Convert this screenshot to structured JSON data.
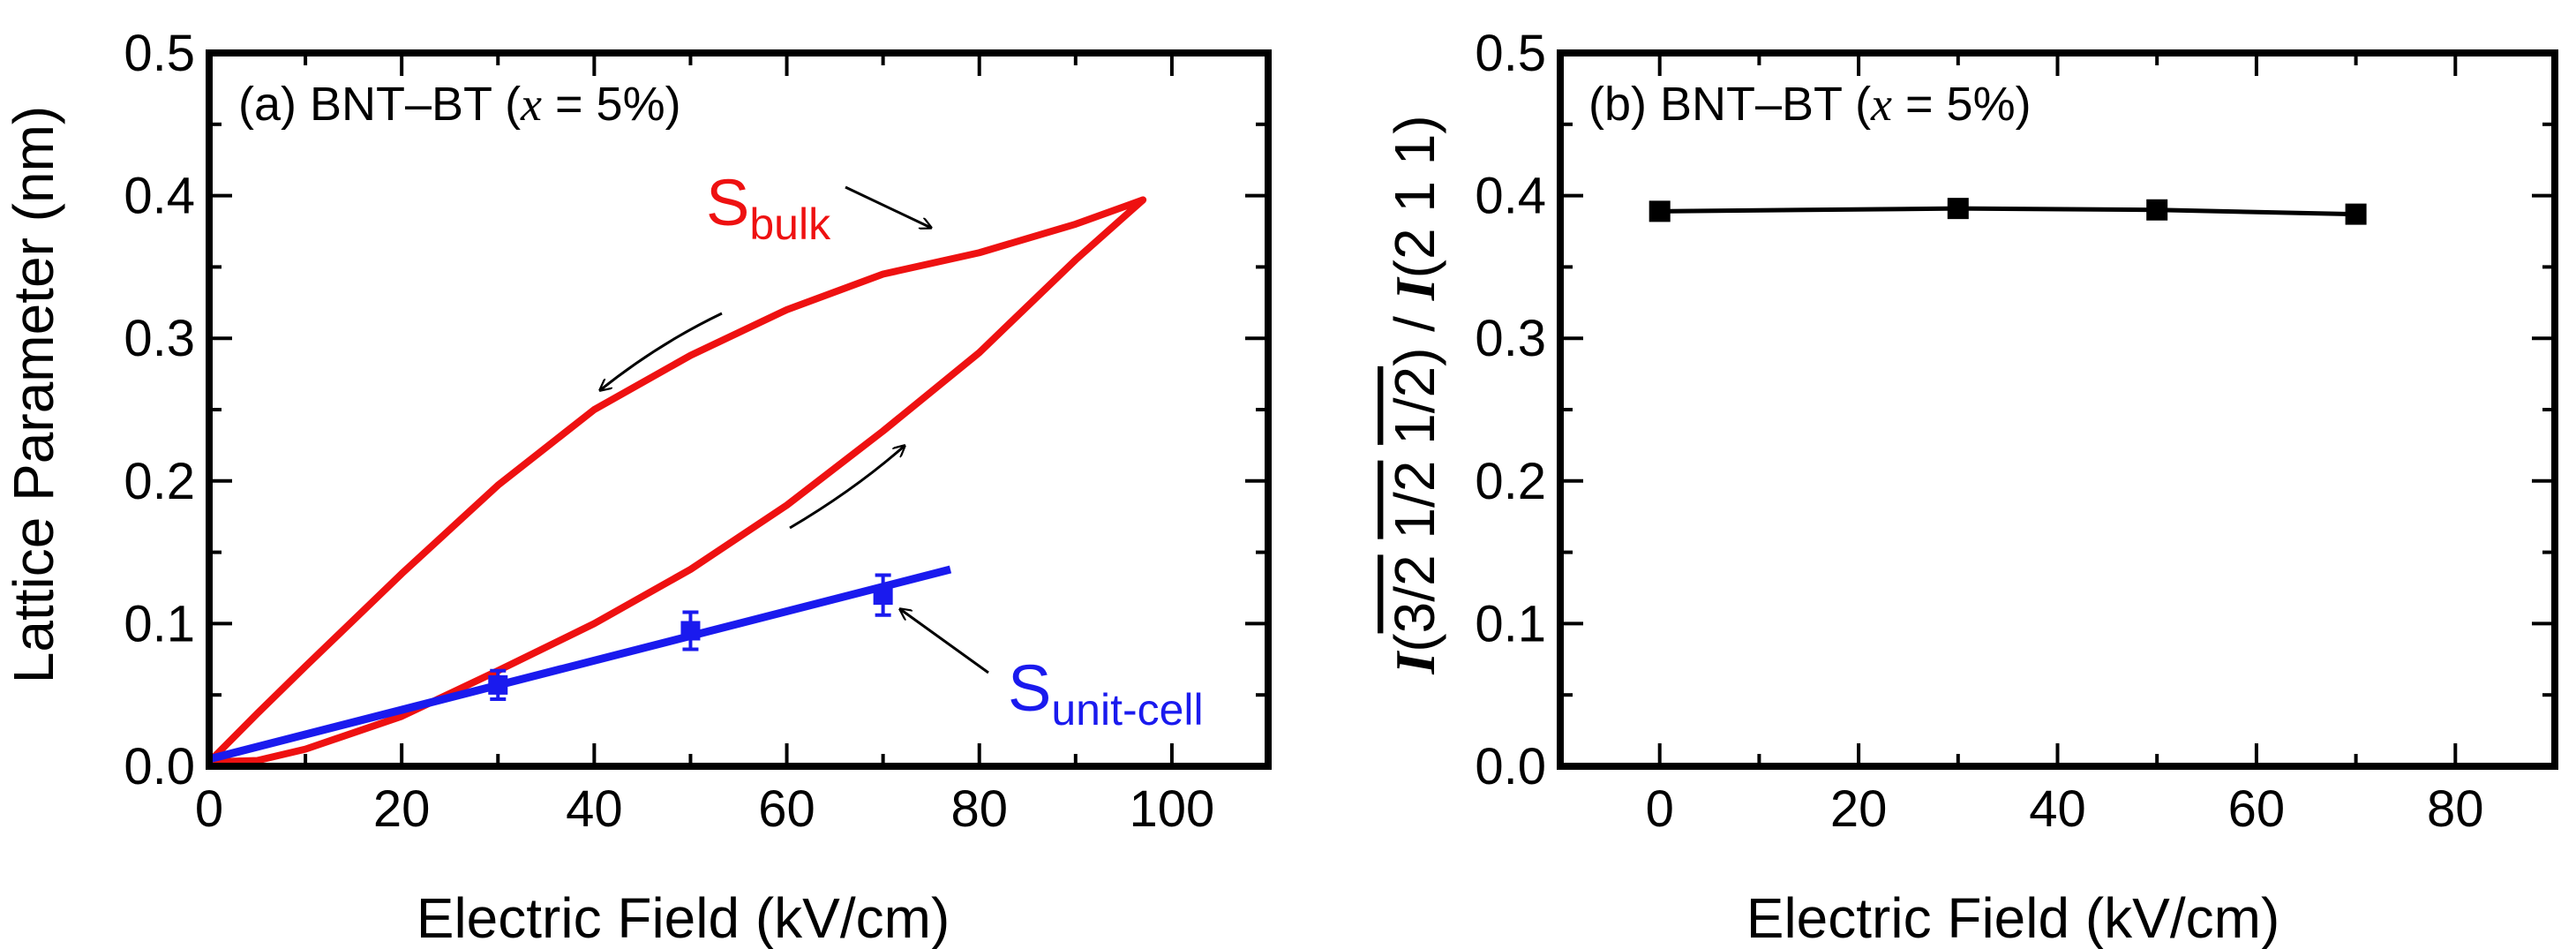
{
  "chart_data": [
    {
      "panel": "a",
      "type": "line",
      "annotation": {
        "prefix": "(a) BNT–BT (",
        "var": "x",
        "suffix": " = 5%)"
      },
      "xlabel": "Electric Field (kV/cm)",
      "ylabel": "Lattice Parameter (nm)",
      "xlim": [
        0,
        110
      ],
      "ylim": [
        0,
        0.5
      ],
      "xticks": [
        "0",
        "20",
        "40",
        "60",
        "80",
        "100"
      ],
      "yticks": [
        "0.0",
        "0.1",
        "0.2",
        "0.3",
        "0.4",
        "0.5"
      ],
      "grid": false,
      "series": [
        {
          "label_main": "S",
          "label_sub": "bulk",
          "color": "#ee1111",
          "style": "solid",
          "x": [
            0,
            5,
            10,
            20,
            30,
            40,
            50,
            60,
            70,
            80,
            90,
            97,
            90,
            80,
            70,
            60,
            50,
            40,
            30,
            20,
            10,
            5,
            0
          ],
          "y": [
            0.003,
            0.004,
            0.012,
            0.035,
            0.067,
            0.1,
            0.138,
            0.183,
            0.235,
            0.29,
            0.355,
            0.397,
            0.38,
            0.36,
            0.345,
            0.32,
            0.288,
            0.25,
            0.197,
            0.135,
            0.07,
            0.037,
            0.003
          ]
        },
        {
          "label_main": "S",
          "label_sub": "unit-cell",
          "color": "#1a1aee",
          "style": "solid",
          "fit_x": [
            0,
            77
          ],
          "fit_y": [
            0.005,
            0.138
          ],
          "points": [
            {
              "x": 30,
              "y": 0.057,
              "err": 0.01
            },
            {
              "x": 50,
              "y": 0.095,
              "err": 0.013
            },
            {
              "x": 70,
              "y": 0.12,
              "err": 0.014
            }
          ]
        }
      ]
    },
    {
      "panel": "b",
      "type": "line",
      "annotation": {
        "prefix": "(b) BNT–BT (",
        "var": "x",
        "suffix": " = 5%)"
      },
      "xlabel": "Electric Field (kV/cm)",
      "ylabel": {
        "i1": "I",
        "p1": "(",
        "ob1": "3/2",
        "sp1": " ",
        "ob2": "1/2",
        "sp2": " ",
        "ob3": "1/2",
        "p2": ") / ",
        "i2": "I",
        "p3": "(2 1 1)"
      },
      "xlim": [
        -10,
        90
      ],
      "ylim": [
        0,
        0.5
      ],
      "xticks": [
        "0",
        "20",
        "40",
        "60",
        "80"
      ],
      "yticks": [
        "0.0",
        "0.1",
        "0.2",
        "0.3",
        "0.4",
        "0.5"
      ],
      "grid": false,
      "series": [
        {
          "color": "#000000",
          "marker": "square",
          "x": [
            0,
            30,
            50,
            70
          ],
          "y": [
            0.389,
            0.391,
            0.39,
            0.387
          ]
        }
      ]
    }
  ]
}
